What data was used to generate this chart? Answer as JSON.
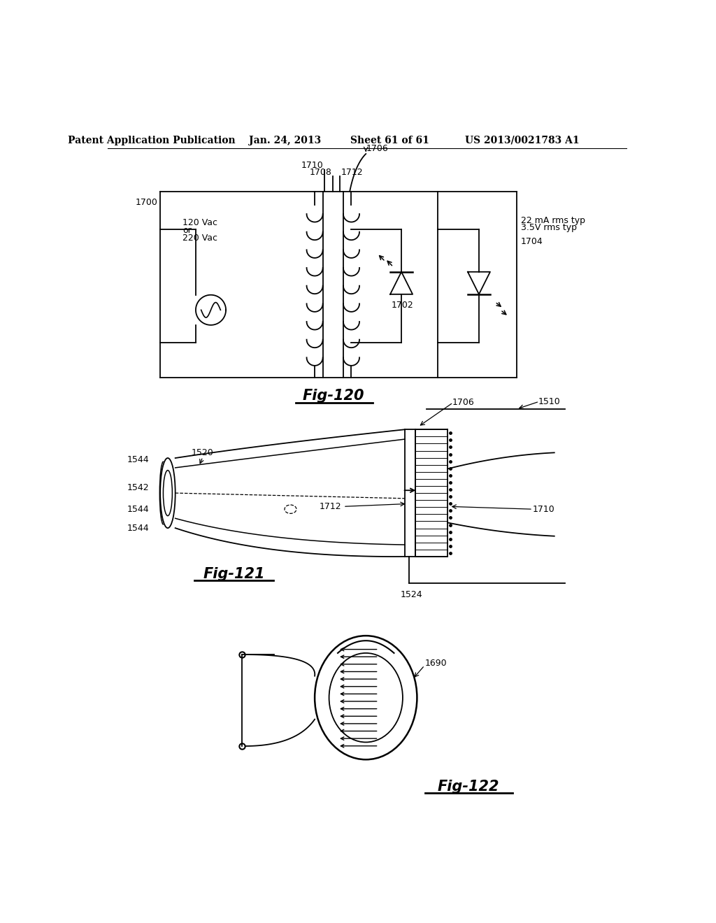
{
  "title_header": "Patent Application Publication",
  "date_header": "Jan. 24, 2013",
  "sheet_header": "Sheet 61 of 61",
  "patent_header": "US 2013/0021783 A1",
  "fig120_label": "Fig-120",
  "fig121_label": "Fig-121",
  "fig122_label": "Fig-122",
  "bg_color": "#ffffff",
  "line_color": "#000000",
  "text_color": "#000000",
  "ref_fontsize": 9,
  "header_fontsize": 10,
  "fig_label_fontsize": 15
}
